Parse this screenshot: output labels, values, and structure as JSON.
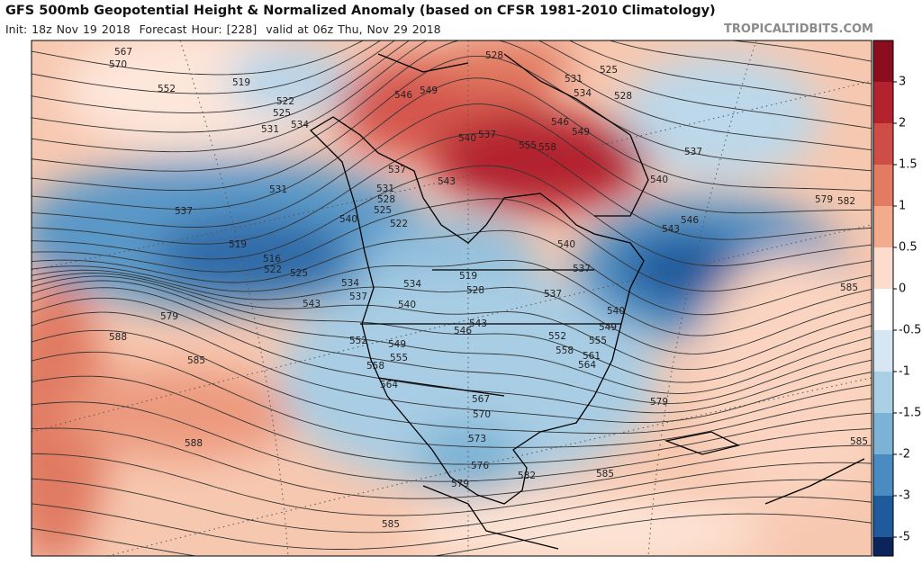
{
  "header": {
    "title": "GFS 500mb Geopotential Height & Normalized Anomaly (based on CFSR 1981-2010 Climatology)",
    "init": "Init: 18z Nov 19 2018",
    "forecast": "Forecast Hour: [228]",
    "valid": "valid at 06z Thu, Nov 29 2018",
    "site": "TROPICALTIDBITS.COM"
  },
  "colorbar": {
    "ticks": [
      3,
      2,
      1.5,
      1,
      0.5,
      0,
      -0.5,
      -1,
      -1.5,
      -2,
      -3,
      -5
    ],
    "colors": [
      "#8a0e1d",
      "#b3232d",
      "#cf4d47",
      "#e27b62",
      "#f3ab8e",
      "#fcdccc",
      "#ffffff",
      "#d6e7f3",
      "#abcfe5",
      "#7bb2d5",
      "#4a8bc1",
      "#1f5a9c",
      "#0b2459"
    ]
  },
  "contour_labels": [
    567,
    570,
    552,
    519,
    522,
    525,
    534,
    531,
    528,
    531,
    525,
    534,
    528,
    546,
    549,
    546,
    549,
    537,
    540,
    540,
    537,
    555,
    558,
    537,
    543,
    531,
    528,
    525,
    522,
    540,
    531,
    537,
    519,
    516,
    522,
    525,
    534,
    534,
    537,
    543,
    540,
    519,
    528,
    540,
    537,
    537,
    546,
    543,
    540,
    543,
    546,
    552,
    549,
    555,
    552,
    549,
    555,
    558,
    561,
    564,
    558,
    564,
    567,
    570,
    579,
    588,
    585,
    588,
    579,
    573,
    576,
    579,
    582,
    585,
    585,
    579,
    582,
    585,
    585
  ]
}
